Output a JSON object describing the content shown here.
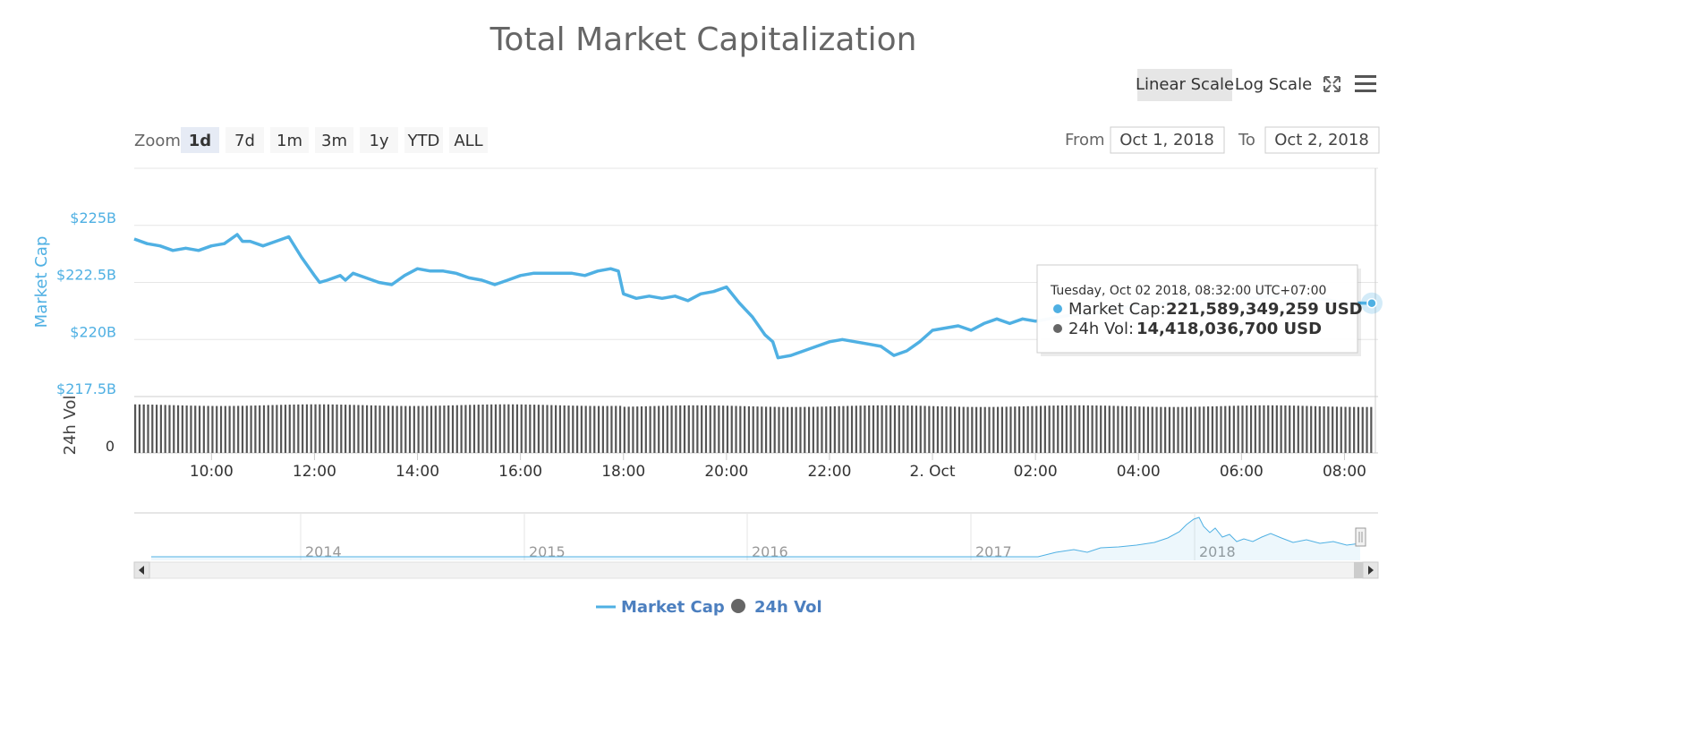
{
  "title": "Total Market Capitalization",
  "scale_buttons": {
    "linear": "Linear Scale",
    "log": "Log Scale",
    "active": "linear"
  },
  "icons": {
    "fullscreen": "fullscreen-icon",
    "menu": "hamburger-menu-icon"
  },
  "zoom": {
    "label": "Zoom",
    "options": [
      "1d",
      "7d",
      "1m",
      "3m",
      "1y",
      "YTD",
      "ALL"
    ],
    "selected": "1d"
  },
  "range": {
    "from_label": "From",
    "from_value": "Oct 1, 2018",
    "to_label": "To",
    "to_value": "Oct 2, 2018"
  },
  "colors": {
    "market_cap": "#4fb0e3",
    "volume": "#555555",
    "grid": "#e6e6e6",
    "button_active": "#e6ebf5",
    "button": "#f7f7f7"
  },
  "legend": [
    {
      "name": "Market Cap",
      "color": "#4fb0e3",
      "symbol": "line"
    },
    {
      "name": "24h Vol",
      "color": "#666666",
      "symbol": "circle"
    }
  ],
  "tooltip": {
    "time": "Tuesday, Oct 02 2018, 08:32:00 UTC+07:00",
    "market_cap_label": "Market Cap:",
    "market_cap_value": "221,589,349,259 USD",
    "volume_label": "24h Vol:",
    "volume_value": "14,418,036,700 USD"
  },
  "chart_data": {
    "type": "line",
    "x_unit": "hours since Oct 1, 2018 00:00 (UTC+07:00)",
    "x_range": [
      8.5,
      32.6
    ],
    "x_ticks": [
      {
        "value": 10,
        "label": "10:00"
      },
      {
        "value": 12,
        "label": "12:00"
      },
      {
        "value": 14,
        "label": "14:00"
      },
      {
        "value": 16,
        "label": "16:00"
      },
      {
        "value": 18,
        "label": "18:00"
      },
      {
        "value": 20,
        "label": "20:00"
      },
      {
        "value": 22,
        "label": "22:00"
      },
      {
        "value": 24,
        "label": "2. Oct"
      },
      {
        "value": 26,
        "label": "02:00"
      },
      {
        "value": 28,
        "label": "04:00"
      },
      {
        "value": 30,
        "label": "06:00"
      },
      {
        "value": 32,
        "label": "08:00"
      }
    ],
    "market_cap": {
      "name": "Market Cap",
      "axis_title": "Market Cap",
      "unit": "billion USD",
      "ylim": [
        217.5,
        227.5
      ],
      "y_ticks": [
        {
          "value": 217.5,
          "label": "$217.5B"
        },
        {
          "value": 220,
          "label": "$220B"
        },
        {
          "value": 222.5,
          "label": "$222.5B"
        },
        {
          "value": 225,
          "label": "$225B"
        }
      ],
      "x": [
        8.5,
        8.75,
        9.0,
        9.25,
        9.5,
        9.75,
        10.0,
        10.25,
        10.5,
        10.6,
        10.75,
        11.0,
        11.25,
        11.5,
        11.75,
        12.0,
        12.1,
        12.25,
        12.5,
        12.6,
        12.75,
        13.0,
        13.25,
        13.5,
        13.75,
        14.0,
        14.25,
        14.5,
        14.75,
        15.0,
        15.25,
        15.5,
        15.75,
        16.0,
        16.25,
        16.5,
        16.75,
        17.0,
        17.25,
        17.5,
        17.75,
        17.9,
        18.0,
        18.25,
        18.5,
        18.75,
        19.0,
        19.25,
        19.5,
        19.75,
        20.0,
        20.25,
        20.5,
        20.75,
        20.9,
        21.0,
        21.25,
        21.5,
        21.75,
        22.0,
        22.25,
        22.5,
        22.75,
        23.0,
        23.25,
        23.5,
        23.75,
        24.0,
        24.25,
        24.5,
        24.75,
        25.0,
        25.25,
        25.5,
        25.75,
        26.0,
        26.25,
        26.5,
        26.75,
        27.0,
        27.25,
        27.5,
        27.75,
        28.0,
        28.25,
        28.5,
        28.75,
        29.0,
        29.25,
        29.5,
        29.75,
        30.0,
        30.25,
        30.5,
        30.75,
        31.0,
        31.25,
        31.5,
        31.75,
        32.0,
        32.25,
        32.53
      ],
      "values": [
        224.4,
        224.2,
        224.1,
        223.9,
        224.0,
        223.9,
        224.1,
        224.2,
        224.6,
        224.3,
        224.3,
        224.1,
        224.3,
        224.5,
        223.6,
        222.8,
        222.5,
        222.6,
        222.8,
        222.6,
        222.9,
        222.7,
        222.5,
        222.4,
        222.8,
        223.1,
        223.0,
        223.0,
        222.9,
        222.7,
        222.6,
        222.4,
        222.6,
        222.8,
        222.9,
        222.9,
        222.9,
        222.9,
        222.8,
        223.0,
        223.1,
        223.0,
        222.0,
        221.8,
        221.9,
        221.8,
        221.9,
        221.7,
        222.0,
        222.1,
        222.3,
        221.6,
        221.0,
        220.2,
        219.9,
        219.2,
        219.3,
        219.5,
        219.7,
        219.9,
        220.0,
        219.9,
        219.8,
        219.7,
        219.3,
        219.5,
        219.9,
        220.4,
        220.5,
        220.6,
        220.4,
        220.7,
        220.9,
        220.7,
        220.9,
        220.8,
        220.9,
        221.0,
        221.1,
        221.1,
        221.2,
        221.3,
        221.4,
        221.5,
        221.4,
        221.6,
        221.7,
        221.6,
        221.8,
        221.7,
        221.8,
        221.9,
        221.8,
        221.9,
        221.9,
        221.8,
        221.7,
        221.8,
        221.7,
        221.6,
        221.6,
        221.59
      ]
    },
    "volume": {
      "name": "24h Vol",
      "axis_title": "24h Vol",
      "unit": "billion USD",
      "y_ticks": [
        {
          "value": 0,
          "label": "0"
        }
      ],
      "bar_interval_minutes": 5,
      "approx_value_per_bar": 14.4,
      "ylim": [
        0,
        17
      ]
    },
    "navigator": {
      "x_ticks": [
        "2014",
        "2015",
        "2016",
        "2017",
        "2018"
      ]
    }
  }
}
